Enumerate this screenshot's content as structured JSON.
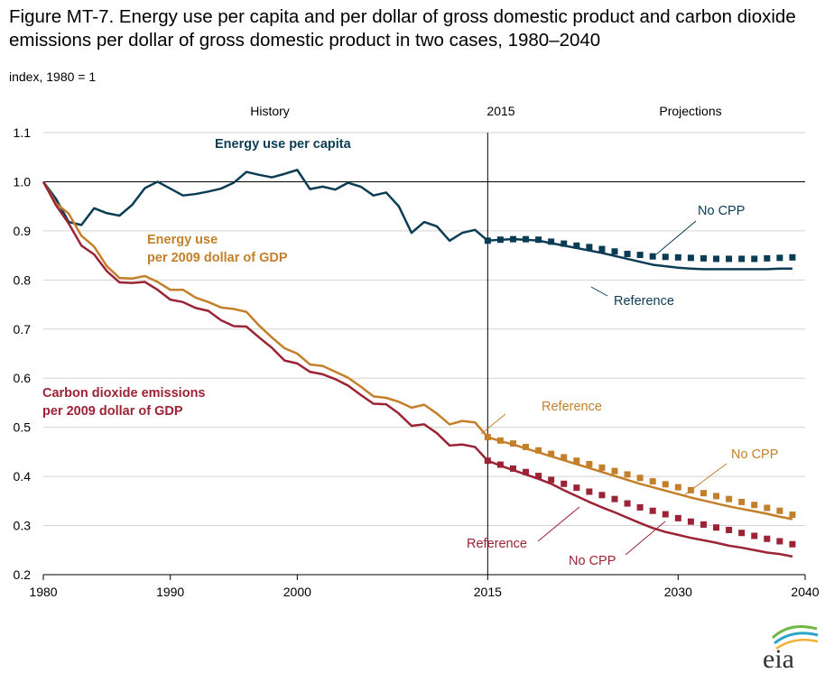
{
  "title": "Figure MT-7. Energy use per capita and per dollar of gross domestic product and carbon dioxide emissions per dollar of gross domestic product in two cases, 1980–2040",
  "unit_label": "index, 1980 = 1",
  "colors": {
    "energy_per_capita": "#0b3c55",
    "energy_per_gdp": "#c47f2a",
    "co2_per_gdp": "#9b2335",
    "axis": "#000000",
    "grid": "#d3d3d3"
  },
  "chart_data": {
    "type": "line",
    "ylim": [
      0.2,
      1.1
    ],
    "yticks": [
      0.2,
      0.3,
      0.4,
      0.5,
      0.6,
      0.7,
      0.8,
      0.9,
      1.0,
      1.1
    ],
    "ytick_labels": [
      "0.2",
      "0.3",
      "0.4",
      "0.5",
      "0.6",
      "0.7",
      "0.8",
      "0.9",
      "1.0",
      "1.1"
    ],
    "xlim": [
      1980,
      2040
    ],
    "xticks": [
      1980,
      1990,
      2000,
      2015,
      2030,
      2040
    ],
    "xtick_labels": [
      "1980",
      "1990",
      "2000",
      "2015",
      "2030",
      "2040"
    ],
    "divider_year": 2015,
    "region_labels": {
      "history": "History",
      "divider": "2015",
      "projections": "Projections"
    },
    "grid": true,
    "series": [
      {
        "name": "Energy use per capita",
        "case": "History",
        "color_key": "energy_per_capita",
        "style": "line",
        "x": [
          1980,
          1981,
          1982,
          1983,
          1984,
          1985,
          1986,
          1987,
          1988,
          1989,
          1990,
          1991,
          1992,
          1993,
          1994,
          1995,
          1996,
          1997,
          1998,
          1999,
          2000,
          2001,
          2002,
          2003,
          2004,
          2005,
          2006,
          2007,
          2008,
          2009,
          2010,
          2011,
          2012,
          2013,
          2014,
          2015
        ],
        "y": [
          1.0,
          0.965,
          0.918,
          0.912,
          0.946,
          0.936,
          0.931,
          0.953,
          0.987,
          1.0,
          0.986,
          0.972,
          0.975,
          0.98,
          0.986,
          0.998,
          1.02,
          1.014,
          1.009,
          1.016,
          1.024,
          0.985,
          0.99,
          0.984,
          0.998,
          0.99,
          0.972,
          0.978,
          0.95,
          0.896,
          0.918,
          0.909,
          0.88,
          0.896,
          0.902,
          0.88
        ]
      },
      {
        "name": "Reference",
        "case": "Reference",
        "color_key": "energy_per_capita",
        "style": "line",
        "x": [
          2015,
          2016,
          2017,
          2018,
          2019,
          2020,
          2021,
          2022,
          2023,
          2024,
          2025,
          2026,
          2027,
          2028,
          2029,
          2030,
          2031,
          2032,
          2033,
          2034,
          2035,
          2036,
          2037,
          2038,
          2039
        ],
        "y": [
          0.88,
          0.882,
          0.883,
          0.882,
          0.88,
          0.875,
          0.87,
          0.865,
          0.86,
          0.855,
          0.849,
          0.843,
          0.837,
          0.831,
          0.828,
          0.825,
          0.823,
          0.822,
          0.822,
          0.822,
          0.822,
          0.822,
          0.822,
          0.823,
          0.823
        ]
      },
      {
        "name": "No CPP",
        "case": "No CPP",
        "color_key": "energy_per_capita",
        "style": "markers",
        "x": [
          2015,
          2016,
          2017,
          2018,
          2019,
          2020,
          2021,
          2022,
          2023,
          2024,
          2025,
          2026,
          2027,
          2028,
          2029,
          2030,
          2031,
          2032,
          2033,
          2034,
          2035,
          2036,
          2037,
          2038,
          2039
        ],
        "y": [
          0.88,
          0.882,
          0.883,
          0.883,
          0.882,
          0.878,
          0.874,
          0.87,
          0.867,
          0.863,
          0.858,
          0.853,
          0.851,
          0.848,
          0.847,
          0.846,
          0.845,
          0.844,
          0.843,
          0.843,
          0.843,
          0.843,
          0.844,
          0.845,
          0.846
        ]
      },
      {
        "name": "Energy use per 2009 dollar of GDP",
        "case": "History",
        "color_key": "energy_per_gdp",
        "style": "line",
        "x": [
          1980,
          1981,
          1982,
          1983,
          1984,
          1985,
          1986,
          1987,
          1988,
          1989,
          1990,
          1991,
          1992,
          1993,
          1994,
          1995,
          1996,
          1997,
          1998,
          1999,
          2000,
          2001,
          2002,
          2003,
          2004,
          2005,
          2006,
          2007,
          2008,
          2009,
          2010,
          2011,
          2012,
          2013,
          2014,
          2015
        ],
        "y": [
          1.0,
          0.956,
          0.935,
          0.89,
          0.868,
          0.828,
          0.804,
          0.803,
          0.808,
          0.796,
          0.78,
          0.78,
          0.764,
          0.755,
          0.744,
          0.741,
          0.735,
          0.707,
          0.683,
          0.661,
          0.65,
          0.628,
          0.625,
          0.613,
          0.601,
          0.583,
          0.563,
          0.56,
          0.552,
          0.54,
          0.546,
          0.528,
          0.506,
          0.513,
          0.51,
          0.48
        ]
      },
      {
        "name": "Reference",
        "case": "Reference",
        "color_key": "energy_per_gdp",
        "style": "line",
        "x": [
          2015,
          2016,
          2017,
          2018,
          2019,
          2020,
          2021,
          2022,
          2023,
          2024,
          2025,
          2026,
          2027,
          2028,
          2029,
          2030,
          2031,
          2032,
          2033,
          2034,
          2035,
          2036,
          2037,
          2038,
          2039
        ],
        "y": [
          0.48,
          0.472,
          0.465,
          0.457,
          0.449,
          0.441,
          0.433,
          0.425,
          0.417,
          0.409,
          0.401,
          0.393,
          0.385,
          0.378,
          0.371,
          0.364,
          0.357,
          0.351,
          0.345,
          0.339,
          0.334,
          0.329,
          0.324,
          0.318,
          0.313
        ]
      },
      {
        "name": "No CPP",
        "case": "No CPP",
        "color_key": "energy_per_gdp",
        "style": "markers",
        "x": [
          2015,
          2016,
          2017,
          2018,
          2019,
          2020,
          2021,
          2022,
          2023,
          2024,
          2025,
          2026,
          2027,
          2028,
          2029,
          2030,
          2031,
          2032,
          2033,
          2034,
          2035,
          2036,
          2037,
          2038,
          2039
        ],
        "y": [
          0.48,
          0.473,
          0.467,
          0.46,
          0.453,
          0.446,
          0.439,
          0.432,
          0.425,
          0.418,
          0.411,
          0.404,
          0.397,
          0.39,
          0.384,
          0.378,
          0.372,
          0.366,
          0.36,
          0.354,
          0.348,
          0.342,
          0.336,
          0.33,
          0.322
        ]
      },
      {
        "name": "Carbon dioxide emissions per 2009 dollar of GDP",
        "case": "History",
        "color_key": "co2_per_gdp",
        "style": "line",
        "x": [
          1980,
          1981,
          1982,
          1983,
          1984,
          1985,
          1986,
          1987,
          1988,
          1989,
          1990,
          1991,
          1992,
          1993,
          1994,
          1995,
          1996,
          1997,
          1998,
          1999,
          2000,
          2001,
          2002,
          2003,
          2004,
          2005,
          2006,
          2007,
          2008,
          2009,
          2010,
          2011,
          2012,
          2013,
          2014,
          2015
        ],
        "y": [
          1.0,
          0.952,
          0.915,
          0.87,
          0.852,
          0.818,
          0.795,
          0.794,
          0.796,
          0.78,
          0.76,
          0.755,
          0.743,
          0.737,
          0.718,
          0.706,
          0.705,
          0.683,
          0.662,
          0.636,
          0.63,
          0.613,
          0.608,
          0.598,
          0.585,
          0.566,
          0.548,
          0.547,
          0.528,
          0.503,
          0.506,
          0.488,
          0.463,
          0.465,
          0.46,
          0.432
        ]
      },
      {
        "name": "Reference",
        "case": "Reference",
        "color_key": "co2_per_gdp",
        "style": "line",
        "x": [
          2015,
          2016,
          2017,
          2018,
          2019,
          2020,
          2021,
          2022,
          2023,
          2024,
          2025,
          2026,
          2027,
          2028,
          2029,
          2030,
          2031,
          2032,
          2033,
          2034,
          2035,
          2036,
          2037,
          2038,
          2039
        ],
        "y": [
          0.432,
          0.422,
          0.413,
          0.404,
          0.395,
          0.385,
          0.372,
          0.36,
          0.348,
          0.337,
          0.327,
          0.316,
          0.305,
          0.295,
          0.287,
          0.281,
          0.275,
          0.27,
          0.265,
          0.259,
          0.255,
          0.25,
          0.245,
          0.242,
          0.237
        ]
      },
      {
        "name": "No CPP",
        "case": "No CPP",
        "color_key": "co2_per_gdp",
        "style": "markers",
        "x": [
          2015,
          2016,
          2017,
          2018,
          2019,
          2020,
          2021,
          2022,
          2023,
          2024,
          2025,
          2026,
          2027,
          2028,
          2029,
          2030,
          2031,
          2032,
          2033,
          2034,
          2035,
          2036,
          2037,
          2038,
          2039
        ],
        "y": [
          0.432,
          0.424,
          0.416,
          0.409,
          0.401,
          0.393,
          0.385,
          0.377,
          0.369,
          0.362,
          0.354,
          0.345,
          0.337,
          0.33,
          0.323,
          0.315,
          0.308,
          0.302,
          0.296,
          0.291,
          0.285,
          0.279,
          0.273,
          0.268,
          0.262
        ]
      }
    ],
    "annotations": {
      "energy_per_capita": "Energy use per capita",
      "energy_gdp_line1": "Energy use",
      "energy_gdp_line2": "per 2009 dollar of GDP",
      "co2_line1": "Carbon dioxide emissions",
      "co2_line2": "per 2009 dollar of GDP",
      "pc_nocpp": "No CPP",
      "pc_reference": "Reference",
      "gdp_reference": "Reference",
      "gdp_nocpp": "No CPP",
      "co2_reference": "Reference",
      "co2_nocpp": "No CPP"
    }
  },
  "logo": {
    "text": "eia"
  }
}
